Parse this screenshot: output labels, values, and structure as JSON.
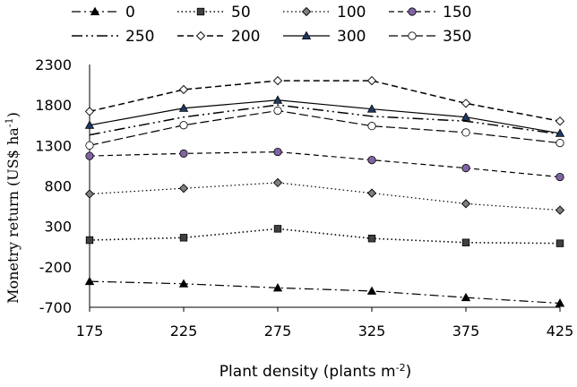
{
  "chart_data": {
    "type": "line",
    "x": [
      175,
      225,
      275,
      325,
      375,
      425
    ],
    "xlabel": "Plant density (plants m",
    "xlabel_sup": "-2",
    "xlabel_end": ")",
    "ylabel": "Monetry return (US$ ha",
    "ylabel_sup": "-1",
    "ylabel_end": ")",
    "ylim": [
      -700,
      2300
    ],
    "yticks": [
      -700,
      -200,
      300,
      800,
      1300,
      1800,
      2300
    ],
    "grid": false,
    "legend_position": "top",
    "series": [
      {
        "name": "0",
        "values": [
          -380,
          -410,
          -460,
          -500,
          -580,
          -650
        ],
        "marker": "triangle",
        "fill": "#000000",
        "dash": "10,4,2,4",
        "width": 1.2
      },
      {
        "name": "50",
        "values": [
          130,
          160,
          270,
          150,
          100,
          90
        ],
        "marker": "square",
        "fill": "#404040",
        "dash": "1.5,3",
        "width": 1.6
      },
      {
        "name": "100",
        "values": [
          700,
          770,
          840,
          710,
          580,
          500
        ],
        "marker": "diamond",
        "fill": "#808080",
        "dash": "1.5,3",
        "width": 1.2
      },
      {
        "name": "150",
        "values": [
          1170,
          1200,
          1220,
          1120,
          1020,
          910
        ],
        "marker": "circle",
        "fill": "#8064a2",
        "dash": "6,4",
        "width": 1.2
      },
      {
        "name": "250",
        "values": [
          1430,
          1650,
          1800,
          1660,
          1600,
          1440
        ],
        "marker": "none",
        "fill": "none",
        "dash": "12,4,2,4,2,4",
        "width": 1.5
      },
      {
        "name": "200",
        "values": [
          1720,
          1990,
          2100,
          2100,
          1820,
          1600
        ],
        "marker": "diamond",
        "fill": "#ffffff",
        "dash": "7,4",
        "width": 1.5
      },
      {
        "name": "300",
        "values": [
          1550,
          1760,
          1860,
          1750,
          1650,
          1450
        ],
        "marker": "triangle",
        "fill": "#1f3864",
        "dash": "",
        "width": 1.2
      },
      {
        "name": "350",
        "values": [
          1300,
          1550,
          1730,
          1540,
          1460,
          1330
        ],
        "marker": "circle",
        "fill": "#ffffff",
        "dash": "10,4",
        "width": 1.2
      }
    ]
  }
}
